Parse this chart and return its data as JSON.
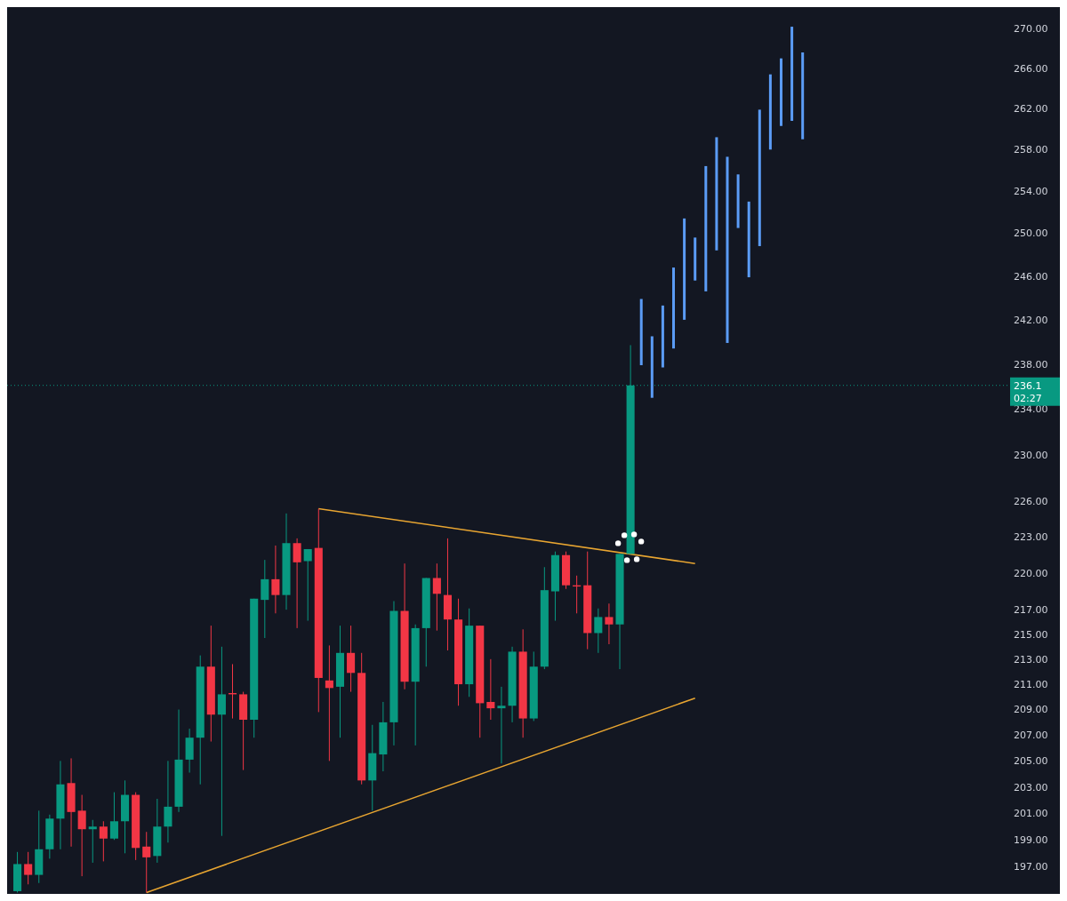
{
  "chart_data": {
    "type": "candlestick",
    "log": true,
    "categories": [
      null,
      null,
      null,
      null,
      null,
      null,
      null,
      null,
      null,
      null,
      null,
      null,
      null,
      null,
      null,
      null,
      null,
      null,
      null,
      null,
      null,
      null,
      null,
      null,
      null,
      null,
      null,
      null,
      null,
      null,
      null,
      null,
      null,
      null,
      null,
      null,
      null,
      null,
      null,
      null,
      null,
      null,
      null,
      null,
      null,
      null,
      null,
      null,
      null,
      null,
      null,
      null,
      null,
      null,
      null,
      null,
      null,
      null,
      null,
      null,
      null,
      null,
      null,
      null,
      null,
      null,
      null,
      null,
      null,
      null,
      null,
      null,
      null,
      null,
      null,
      null,
      null,
      null,
      null,
      null,
      null,
      null,
      null,
      null,
      null,
      null,
      null,
      null,
      null,
      null,
      null,
      null
    ],
    "ohlc": [
      [
        195.2,
        198.1,
        195.1,
        197.2
      ],
      [
        197.2,
        198.1,
        195.7,
        196.4
      ],
      [
        196.4,
        201.2,
        195.8,
        198.3
      ],
      [
        198.3,
        200.9,
        197.6,
        200.6
      ],
      [
        200.6,
        205.0,
        198.3,
        203.2
      ],
      [
        203.3,
        205.2,
        198.5,
        201.1
      ],
      [
        201.2,
        202.4,
        196.3,
        199.8
      ],
      [
        199.8,
        200.5,
        197.3,
        200.0
      ],
      [
        200.0,
        200.4,
        197.4,
        199.1
      ],
      [
        199.1,
        202.6,
        199.0,
        200.4
      ],
      [
        200.4,
        203.5,
        198.0,
        202.4
      ],
      [
        202.4,
        202.6,
        197.5,
        198.4
      ],
      [
        198.5,
        199.6,
        195.1,
        197.7
      ],
      [
        197.8,
        202.1,
        197.3,
        200.0
      ],
      [
        200.0,
        205.0,
        198.8,
        201.5
      ],
      [
        201.5,
        209.0,
        201.1,
        205.1
      ],
      [
        205.1,
        207.5,
        204.1,
        206.8
      ],
      [
        206.8,
        213.3,
        203.2,
        212.4
      ],
      [
        212.4,
        215.7,
        206.5,
        208.6
      ],
      [
        208.6,
        214.0,
        199.3,
        210.2
      ],
      [
        210.3,
        212.6,
        208.3,
        210.2
      ],
      [
        210.2,
        210.4,
        204.3,
        208.2
      ],
      [
        208.2,
        217.9,
        206.8,
        217.9
      ],
      [
        217.8,
        221.1,
        214.7,
        219.5
      ],
      [
        219.5,
        222.3,
        216.7,
        218.2
      ],
      [
        218.2,
        225.0,
        217.0,
        222.5
      ],
      [
        222.5,
        222.9,
        215.5,
        220.9
      ],
      [
        221.0,
        222.0,
        216.1,
        222.0
      ],
      [
        222.1,
        225.4,
        208.8,
        211.5
      ],
      [
        211.3,
        214.1,
        205.0,
        210.7
      ],
      [
        210.8,
        215.7,
        206.8,
        213.5
      ],
      [
        213.5,
        215.7,
        210.4,
        211.9
      ],
      [
        211.9,
        213.5,
        203.2,
        203.5
      ],
      [
        203.5,
        207.8,
        201.2,
        205.6
      ],
      [
        205.5,
        209.6,
        204.2,
        208.0
      ],
      [
        208.0,
        217.7,
        206.2,
        216.9
      ],
      [
        216.9,
        220.8,
        210.6,
        211.2
      ],
      [
        211.2,
        215.8,
        206.2,
        215.5
      ],
      [
        215.5,
        219.6,
        212.4,
        219.6
      ],
      [
        219.6,
        220.8,
        215.3,
        218.3
      ],
      [
        218.2,
        222.9,
        213.7,
        216.2
      ],
      [
        216.2,
        217.9,
        209.3,
        211.0
      ],
      [
        211.0,
        217.1,
        210.0,
        215.7
      ],
      [
        215.7,
        215.7,
        206.8,
        209.5
      ],
      [
        209.6,
        213.0,
        208.2,
        209.1
      ],
      [
        209.1,
        210.8,
        204.8,
        209.3
      ],
      [
        209.3,
        214.0,
        208.0,
        213.6
      ],
      [
        213.6,
        215.4,
        206.8,
        208.3
      ],
      [
        208.3,
        213.6,
        208.1,
        212.4
      ],
      [
        212.4,
        220.5,
        212.2,
        218.6
      ],
      [
        218.5,
        221.8,
        216.1,
        221.5
      ],
      [
        221.5,
        221.8,
        218.7,
        219.0
      ],
      [
        219.0,
        219.8,
        216.7,
        218.9
      ],
      [
        219.0,
        221.8,
        213.8,
        215.1
      ],
      [
        215.1,
        217.1,
        213.5,
        216.4
      ],
      [
        216.4,
        217.5,
        214.2,
        215.8
      ],
      [
        215.8,
        221.6,
        212.2,
        221.6
      ],
      [
        221.6,
        239.7,
        221.6,
        236.1
      ],
      null,
      null,
      null,
      null,
      null,
      null,
      null,
      null,
      null,
      null,
      null,
      null,
      null,
      null,
      null,
      null,
      null,
      null,
      null,
      null,
      null,
      null,
      null,
      null,
      null,
      null,
      null,
      null,
      null,
      null,
      null,
      null,
      null,
      null
    ],
    "colors": [
      "#089981",
      "#f23645",
      "#089981",
      "#089981",
      "#089981",
      "#f23645",
      "#f23645",
      "#089981",
      "#f23645",
      "#089981",
      "#089981",
      "#f23645",
      "#f23645",
      "#089981",
      "#089981",
      "#089981",
      "#089981",
      "#089981",
      "#f23645",
      "#089981",
      "#f23645",
      "#f23645",
      "#089981",
      "#089981",
      "#f23645",
      "#089981",
      "#f23645",
      "#089981",
      "#f23645",
      "#f23645",
      "#089981",
      "#f23645",
      "#f23645",
      "#089981",
      "#089981",
      "#089981",
      "#f23645",
      "#089981",
      "#089981",
      "#f23645",
      "#f23645",
      "#f23645",
      "#089981",
      "#f23645",
      "#f23645",
      "#089981",
      "#089981",
      "#f23645",
      "#089981",
      "#089981",
      "#089981",
      "#f23645",
      "#f23645",
      "#f23645",
      "#089981",
      "#f23645",
      "#089981",
      "#089981",
      null,
      null,
      null,
      null,
      null,
      null,
      null,
      null,
      null,
      null,
      null,
      null,
      null,
      null,
      null,
      null,
      null,
      null,
      null,
      null,
      null,
      null,
      null,
      null,
      null,
      null,
      null,
      null,
      null,
      null,
      null,
      null,
      null,
      null
    ],
    "series": [
      {
        "type": "bar",
        "color": "#5b9cf6",
        "base": [
          null,
          null,
          null,
          null,
          null,
          null,
          null,
          null,
          null,
          null,
          null,
          null,
          null,
          null,
          null,
          null,
          null,
          null,
          null,
          null,
          null,
          null,
          null,
          null,
          null,
          null,
          null,
          null,
          null,
          null,
          null,
          null,
          null,
          null,
          null,
          null,
          null,
          null,
          null,
          null,
          null,
          null,
          null,
          null,
          null,
          null,
          null,
          null,
          null,
          null,
          null,
          null,
          null,
          null,
          null,
          null,
          null,
          null,
          237.9,
          235.0,
          237.7,
          239.4,
          242.0,
          245.6,
          244.6,
          248.4,
          239.9,
          250.5,
          245.9,
          248.8,
          258.0,
          260.3,
          260.8,
          259.0,
          null,
          null,
          null,
          null,
          null,
          null,
          null,
          null,
          null,
          null,
          null,
          null,
          null,
          null,
          null,
          null,
          null,
          null
        ],
        "values": [
          null,
          null,
          null,
          null,
          null,
          null,
          null,
          null,
          null,
          null,
          null,
          null,
          null,
          null,
          null,
          null,
          null,
          null,
          null,
          null,
          null,
          null,
          null,
          null,
          null,
          null,
          null,
          null,
          null,
          null,
          null,
          null,
          null,
          null,
          null,
          null,
          null,
          null,
          null,
          null,
          null,
          null,
          null,
          null,
          null,
          null,
          null,
          null,
          null,
          null,
          null,
          null,
          null,
          null,
          null,
          null,
          null,
          null,
          6.0,
          5.5,
          5.6,
          7.4,
          9.4,
          4.0,
          11.8,
          10.8,
          17.4,
          5.1,
          7.1,
          13.1,
          7.4,
          6.7,
          9.4,
          8.6,
          null,
          null,
          null,
          null,
          null,
          null,
          null,
          null,
          null,
          null,
          null,
          null,
          null,
          null,
          null,
          null,
          null,
          null
        ]
      },
      {
        "type": "line",
        "color": "#e8a531",
        "values": [
          null,
          null,
          null,
          null,
          null,
          null,
          null,
          null,
          null,
          null,
          null,
          null,
          null,
          null,
          null,
          null,
          null,
          null,
          null,
          null,
          null,
          null,
          null,
          null,
          null,
          null,
          null,
          null,
          225.4,
          null,
          null,
          null,
          null,
          null,
          null,
          null,
          null,
          null,
          null,
          null,
          null,
          null,
          null,
          null,
          null,
          null,
          null,
          null,
          null,
          null,
          null,
          null,
          null,
          null,
          null,
          null,
          null,
          null,
          null,
          null,
          null,
          null,
          null,
          220.8,
          null,
          null,
          null,
          null,
          null,
          null,
          null,
          null,
          null,
          null,
          null,
          null,
          null,
          null,
          null,
          null,
          null,
          null,
          null,
          null,
          null,
          null,
          null,
          null,
          null,
          null,
          null,
          null
        ]
      },
      {
        "type": "line",
        "color": "#e8a531",
        "values": [
          null,
          null,
          null,
          null,
          null,
          null,
          null,
          null,
          null,
          null,
          null,
          null,
          195.1,
          null,
          null,
          null,
          null,
          null,
          null,
          null,
          null,
          null,
          null,
          null,
          null,
          null,
          null,
          null,
          null,
          null,
          null,
          null,
          null,
          null,
          null,
          null,
          null,
          null,
          null,
          null,
          null,
          null,
          null,
          null,
          null,
          null,
          null,
          null,
          null,
          null,
          null,
          null,
          null,
          null,
          null,
          null,
          null,
          null,
          null,
          null,
          null,
          null,
          null,
          209.9,
          null,
          null,
          null,
          null,
          null,
          null,
          null,
          null,
          null,
          null,
          null,
          null,
          null,
          null,
          null,
          null,
          null,
          null,
          null,
          null,
          null,
          null,
          null,
          null,
          null,
          null,
          null,
          null
        ]
      }
    ],
    "ylim": [
      195.0,
      272.2
    ],
    "yticks": [
      {
        "value": 197,
        "label": "197.00"
      },
      {
        "value": 199,
        "label": "199.00"
      },
      {
        "value": 201,
        "label": "201.00"
      },
      {
        "value": 203,
        "label": "203.00"
      },
      {
        "value": 205,
        "label": "205.00"
      },
      {
        "value": 207,
        "label": "207.00"
      },
      {
        "value": 209,
        "label": "209.00"
      },
      {
        "value": 211,
        "label": "211.00"
      },
      {
        "value": 213,
        "label": "213.00"
      },
      {
        "value": 215,
        "label": "215.00"
      },
      {
        "value": 217,
        "label": "217.00"
      },
      {
        "value": 220,
        "label": "220.00"
      },
      {
        "value": 223,
        "label": "223.00"
      },
      {
        "value": 226,
        "label": "226.00"
      },
      {
        "value": 230,
        "label": "230.00"
      },
      {
        "value": 234,
        "label": "234.00"
      },
      {
        "value": 238,
        "label": "238.00"
      },
      {
        "value": 242,
        "label": "242.00"
      },
      {
        "value": 246,
        "label": "246.00"
      },
      {
        "value": 250,
        "label": "250.00"
      },
      {
        "value": 254,
        "label": "254.00"
      },
      {
        "value": 258,
        "label": "258.00"
      },
      {
        "value": 262,
        "label": "262.00"
      },
      {
        "value": 266,
        "label": "266.00"
      },
      {
        "value": 270,
        "label": "270.00"
      }
    ],
    "ref_lines": [
      {
        "axis": "y",
        "value": 236.1,
        "label": "236.1",
        "color": "#089981",
        "line_style": "dotted"
      }
    ],
    "annotations": [
      "02:27"
    ]
  }
}
